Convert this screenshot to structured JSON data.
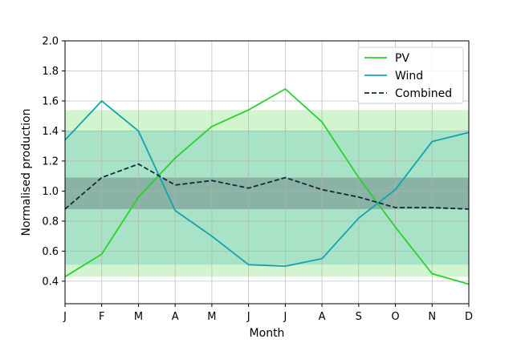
{
  "chart_data": {
    "type": "line",
    "xlabel": "Month",
    "ylabel": "Normalised production",
    "categories": [
      "J",
      "F",
      "M",
      "A",
      "M",
      "J",
      "J",
      "A",
      "S",
      "O",
      "N",
      "D"
    ],
    "ylim": [
      0.25,
      2.0
    ],
    "yticks": [
      "0.4",
      "0.6",
      "0.8",
      "1.0",
      "1.2",
      "1.4",
      "1.6",
      "1.8",
      "2.0"
    ],
    "grid": true,
    "legend_position": "top-right",
    "bands": [
      {
        "low": 0.43,
        "high": 1.54,
        "color": "#d2f5cf"
      },
      {
        "low": 0.51,
        "high": 1.4,
        "color": "#a8e3c7"
      },
      {
        "low": 0.88,
        "high": 1.09,
        "color": "#8ab3a6"
      }
    ],
    "series": [
      {
        "name": "PV",
        "color": "#2ad12a",
        "dash": false,
        "values": [
          0.43,
          0.58,
          0.96,
          1.22,
          1.43,
          1.54,
          1.68,
          1.46,
          1.09,
          0.76,
          0.45,
          0.38
        ]
      },
      {
        "name": "Wind",
        "color": "#10a3b0",
        "dash": false,
        "values": [
          1.34,
          1.6,
          1.4,
          0.87,
          0.7,
          0.51,
          0.5,
          0.55,
          0.82,
          1.01,
          1.33,
          1.39
        ]
      },
      {
        "name": "Combined",
        "color": "#0f2a3c",
        "dash": true,
        "values": [
          0.88,
          1.09,
          1.18,
          1.04,
          1.07,
          1.02,
          1.09,
          1.01,
          0.96,
          0.89,
          0.89,
          0.88
        ]
      }
    ]
  }
}
